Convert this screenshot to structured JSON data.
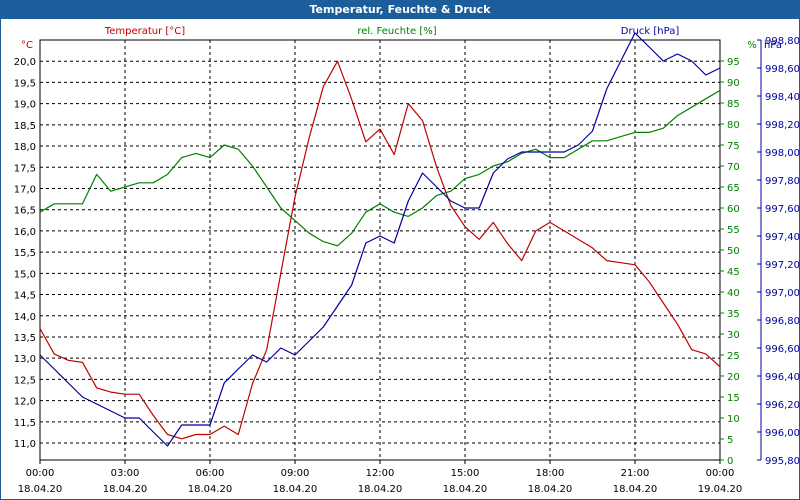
{
  "title": "Temperatur, Feuchte & Druck",
  "colors": {
    "titlebar": "#1c5e9c",
    "temperature": "#c00000",
    "humidity": "#008000",
    "pressure": "#0000a0"
  },
  "chart_data": {
    "type": "line",
    "grid": true,
    "x_axis": {
      "range": [
        "2020-04-18 00:00",
        "2020-04-19 00:00"
      ],
      "ticks": [
        {
          "time": "00:00",
          "date": "18.04.20"
        },
        {
          "time": "03:00",
          "date": "18.04.20"
        },
        {
          "time": "06:00",
          "date": "18.04.20"
        },
        {
          "time": "09:00",
          "date": "18.04.20"
        },
        {
          "time": "12:00",
          "date": "18.04.20"
        },
        {
          "time": "15:00",
          "date": "18.04.20"
        },
        {
          "time": "18:00",
          "date": "18.04.20"
        },
        {
          "time": "21:00",
          "date": "18.04.20"
        },
        {
          "time": "00:00",
          "date": "19.04.20"
        }
      ]
    },
    "axes": {
      "temperature": {
        "label": "Temperatur [°C]",
        "unit": "°C",
        "side": "left",
        "range": [
          10.6,
          20.5
        ],
        "ticks": [
          "11,0",
          "11,5",
          "12,0",
          "12,5",
          "13,0",
          "13,5",
          "14,0",
          "14,5",
          "15,0",
          "15,5",
          "16,0",
          "16,5",
          "17,0",
          "17,5",
          "18,0",
          "18,5",
          "19,0",
          "19,5",
          "20,0"
        ]
      },
      "humidity": {
        "label": "rel. Feuchte [%]",
        "unit": "%",
        "side": "right",
        "range": [
          0,
          100
        ],
        "ticks": [
          "0",
          "5",
          "10",
          "15",
          "20",
          "25",
          "30",
          "35",
          "40",
          "45",
          "50",
          "55",
          "60",
          "65",
          "70",
          "75",
          "80",
          "85",
          "90",
          "95"
        ]
      },
      "pressure": {
        "label": "Druck [hPa]",
        "unit": "hPa",
        "side": "right",
        "range": [
          995.8,
          998.8
        ],
        "ticks": [
          "995,80",
          "996,00",
          "996,20",
          "996,40",
          "996,60",
          "996,80",
          "997,00",
          "997,20",
          "997,40",
          "997,60",
          "997,80",
          "998,00",
          "998,20",
          "998,40",
          "998,60",
          "998,80"
        ]
      }
    },
    "series": [
      {
        "name": "Temperatur [°C]",
        "axis": "temperature",
        "x_hours": [
          0,
          0.5,
          1,
          1.5,
          2,
          2.5,
          3,
          3.5,
          4,
          4.5,
          5,
          5.5,
          6,
          6.5,
          7,
          7.5,
          8,
          8.5,
          9,
          9.5,
          10,
          10.5,
          11,
          11.5,
          12,
          12.5,
          13,
          13.5,
          14,
          14.5,
          15,
          15.5,
          16,
          16.5,
          17,
          17.5,
          18,
          18.5,
          19,
          19.5,
          20,
          20.5,
          21,
          21.5,
          22,
          22.5,
          23,
          23.5,
          24
        ],
        "values": [
          13.7,
          13.1,
          12.95,
          12.9,
          12.3,
          12.2,
          12.15,
          12.15,
          11.65,
          11.2,
          11.1,
          11.2,
          11.2,
          11.4,
          11.2,
          12.4,
          13.2,
          15.0,
          16.8,
          18.2,
          19.4,
          20.0,
          19.1,
          18.1,
          18.4,
          17.8,
          19.0,
          18.6,
          17.5,
          16.6,
          16.1,
          15.8,
          16.2,
          15.7,
          15.3,
          16.0,
          16.2,
          16.0,
          15.8,
          15.6,
          15.3,
          15.25,
          15.2,
          14.8,
          14.3,
          13.8,
          13.2,
          13.1,
          12.8
        ]
      },
      {
        "name": "rel. Feuchte [%]",
        "axis": "humidity",
        "x_hours": [
          0,
          0.5,
          1,
          1.5,
          2,
          2.5,
          3,
          3.5,
          4,
          4.5,
          5,
          5.5,
          6,
          6.5,
          7,
          7.5,
          8,
          8.5,
          9,
          9.5,
          10,
          10.5,
          11,
          11.5,
          12,
          12.5,
          13,
          13.5,
          14,
          14.5,
          15,
          15.5,
          16,
          16.5,
          17,
          17.5,
          18,
          18.5,
          19,
          19.5,
          20,
          20.5,
          21,
          21.5,
          22,
          22.5,
          23,
          23.5,
          24
        ],
        "values": [
          59,
          61,
          61,
          61,
          68,
          64,
          65,
          66,
          66,
          68,
          72,
          73,
          72,
          75,
          74,
          70,
          65,
          60,
          57,
          54,
          52,
          51,
          54,
          59,
          61,
          59,
          58,
          60,
          63,
          64,
          67,
          68,
          70,
          71,
          73,
          74,
          72,
          72,
          74,
          76,
          76,
          77,
          78,
          78,
          79,
          82,
          84,
          86,
          88
        ]
      },
      {
        "name": "Druck [hPa]",
        "axis": "pressure",
        "x_hours": [
          0,
          0.5,
          1,
          1.5,
          2,
          2.5,
          3,
          3.5,
          4,
          4.5,
          5,
          5.5,
          6,
          6.5,
          7,
          7.5,
          8,
          8.5,
          9,
          9.5,
          10,
          10.5,
          11,
          11.5,
          12,
          12.5,
          13,
          13.5,
          14,
          14.5,
          15,
          15.5,
          16,
          16.5,
          17,
          17.5,
          18,
          18.5,
          19,
          19.5,
          20,
          20.5,
          21,
          21.5,
          22,
          22.5,
          23,
          23.5,
          24
        ],
        "values": [
          996.55,
          996.45,
          996.35,
          996.25,
          996.2,
          996.15,
          996.1,
          996.1,
          996.0,
          995.9,
          996.05,
          996.05,
          996.05,
          996.35,
          996.45,
          996.55,
          996.5,
          996.6,
          996.55,
          996.65,
          996.75,
          996.9,
          997.05,
          997.35,
          997.4,
          997.35,
          997.65,
          997.85,
          997.75,
          997.65,
          997.6,
          997.6,
          997.85,
          997.95,
          998.0,
          998.0,
          998.0,
          998.0,
          998.05,
          998.15,
          998.45,
          998.65,
          998.85,
          998.75,
          998.65,
          998.7,
          998.65,
          998.55,
          998.6
        ]
      }
    ]
  }
}
